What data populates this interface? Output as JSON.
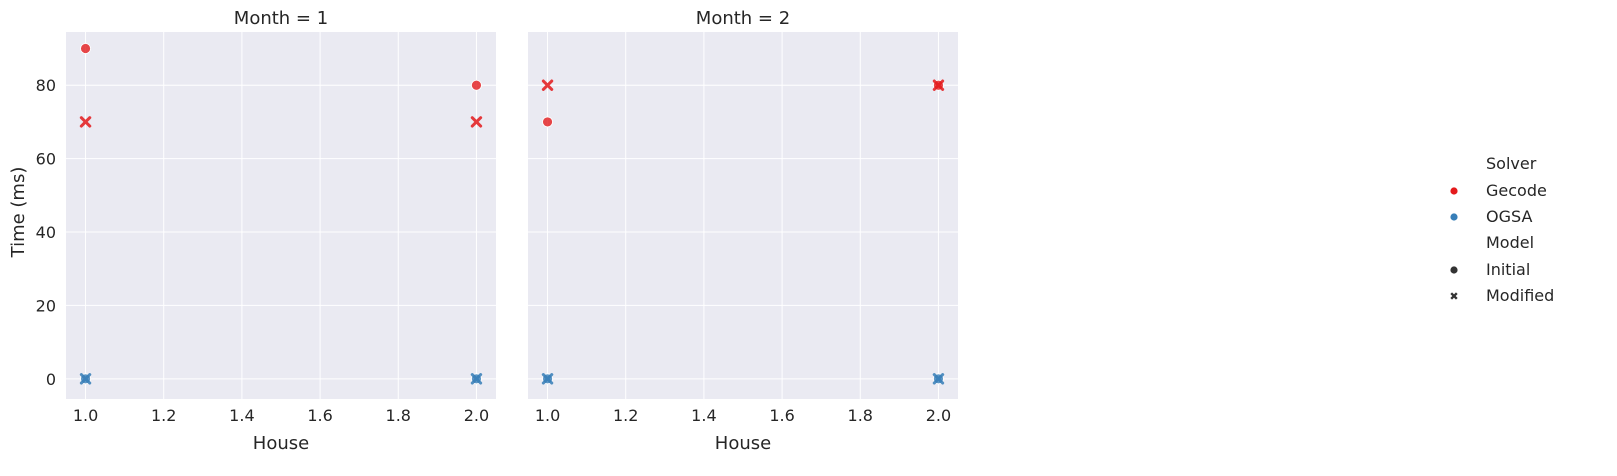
{
  "chart_data": {
    "type": "scatter",
    "xlabel": "House",
    "ylabel": "Time (ms)",
    "xlim": [
      0.95,
      2.05
    ],
    "ylim": [
      -5.5,
      94.5
    ],
    "xticks": [
      "1.0",
      "1.2",
      "1.4",
      "1.6",
      "1.8",
      "2.0"
    ],
    "xtick_values": [
      1.0,
      1.2,
      1.4,
      1.6,
      1.8,
      2.0
    ],
    "yticks": [
      "0",
      "20",
      "40",
      "60",
      "80"
    ],
    "ytick_values": [
      0,
      20,
      40,
      60,
      80
    ],
    "grid": true,
    "legend_placement": "right",
    "legend": {
      "hue_title": "Solver",
      "hue_entries": [
        {
          "name": "Gecode",
          "color": "#e41a1c"
        },
        {
          "name": "OGSA",
          "color": "#377eb8"
        }
      ],
      "style_title": "Model",
      "style_entries": [
        {
          "name": "Initial",
          "marker": "circle"
        },
        {
          "name": "Modified",
          "marker": "x"
        }
      ]
    },
    "facets": [
      {
        "title": "Month = 1",
        "points": [
          {
            "x": 1.0,
            "y": 90,
            "solver": "Gecode",
            "model": "Initial"
          },
          {
            "x": 1.0,
            "y": 70,
            "solver": "Gecode",
            "model": "Modified"
          },
          {
            "x": 1.0,
            "y": 0,
            "solver": "OGSA",
            "model": "Initial"
          },
          {
            "x": 1.0,
            "y": 0,
            "solver": "OGSA",
            "model": "Modified"
          },
          {
            "x": 2.0,
            "y": 80,
            "solver": "Gecode",
            "model": "Initial"
          },
          {
            "x": 2.0,
            "y": 70,
            "solver": "Gecode",
            "model": "Modified"
          },
          {
            "x": 2.0,
            "y": 0,
            "solver": "OGSA",
            "model": "Initial"
          },
          {
            "x": 2.0,
            "y": 0,
            "solver": "OGSA",
            "model": "Modified"
          }
        ]
      },
      {
        "title": "Month = 2",
        "points": [
          {
            "x": 1.0,
            "y": 70,
            "solver": "Gecode",
            "model": "Initial"
          },
          {
            "x": 1.0,
            "y": 80,
            "solver": "Gecode",
            "model": "Modified"
          },
          {
            "x": 1.0,
            "y": 0,
            "solver": "OGSA",
            "model": "Initial"
          },
          {
            "x": 1.0,
            "y": 0,
            "solver": "OGSA",
            "model": "Modified"
          },
          {
            "x": 2.0,
            "y": 80,
            "solver": "Gecode",
            "model": "Initial"
          },
          {
            "x": 2.0,
            "y": 80,
            "solver": "Gecode",
            "model": "Modified"
          },
          {
            "x": 2.0,
            "y": 0,
            "solver": "OGSA",
            "model": "Initial"
          },
          {
            "x": 2.0,
            "y": 0,
            "solver": "OGSA",
            "model": "Modified"
          }
        ]
      }
    ]
  }
}
